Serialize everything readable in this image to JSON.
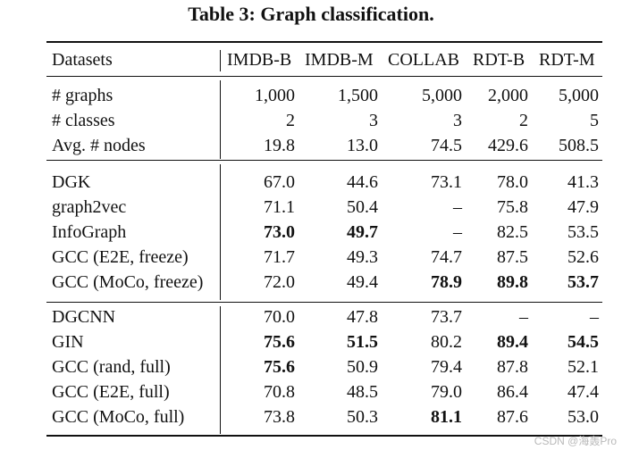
{
  "caption": "Table 3: Graph classification.",
  "columns": [
    "Datasets",
    "IMDB-B",
    "IMDB-M",
    "COLLAB",
    "RDT-B",
    "RDT-M"
  ],
  "stats_rows": [
    {
      "label": "# graphs",
      "values": [
        "1,000",
        "1,500",
        "5,000",
        "2,000",
        "5,000"
      ],
      "bold": [
        false,
        false,
        false,
        false,
        false
      ]
    },
    {
      "label": "# classes",
      "values": [
        "2",
        "3",
        "3",
        "2",
        "5"
      ],
      "bold": [
        false,
        false,
        false,
        false,
        false
      ]
    },
    {
      "label": "Avg. # nodes",
      "values": [
        "19.8",
        "13.0",
        "74.5",
        "429.6",
        "508.5"
      ],
      "bold": [
        false,
        false,
        false,
        false,
        false
      ]
    }
  ],
  "unsupervised_rows": [
    {
      "label": "DGK",
      "values": [
        "67.0",
        "44.6",
        "73.1",
        "78.0",
        "41.3"
      ],
      "bold": [
        false,
        false,
        false,
        false,
        false
      ]
    },
    {
      "label": "graph2vec",
      "values": [
        "71.1",
        "50.4",
        "–",
        "75.8",
        "47.9"
      ],
      "bold": [
        false,
        false,
        false,
        false,
        false
      ]
    },
    {
      "label": "InfoGraph",
      "values": [
        "73.0",
        "49.7",
        "–",
        "82.5",
        "53.5"
      ],
      "bold": [
        true,
        true,
        false,
        false,
        false
      ]
    },
    {
      "label": "GCC (E2E, freeze)",
      "values": [
        "71.7",
        "49.3",
        "74.7",
        "87.5",
        "52.6"
      ],
      "bold": [
        false,
        false,
        false,
        false,
        false
      ]
    },
    {
      "label": "GCC (MoCo, freeze)",
      "values": [
        "72.0",
        "49.4",
        "78.9",
        "89.8",
        "53.7"
      ],
      "bold": [
        false,
        false,
        true,
        true,
        true
      ]
    }
  ],
  "supervised_rows": [
    {
      "label": "DGCNN",
      "values": [
        "70.0",
        "47.8",
        "73.7",
        "–",
        "–"
      ],
      "bold": [
        false,
        false,
        false,
        false,
        false
      ]
    },
    {
      "label": "GIN",
      "values": [
        "75.6",
        "51.5",
        "80.2",
        "89.4",
        "54.5"
      ],
      "bold": [
        true,
        true,
        false,
        true,
        true
      ]
    },
    {
      "label": "GCC (rand, full)",
      "values": [
        "75.6",
        "50.9",
        "79.4",
        "87.8",
        "52.1"
      ],
      "bold": [
        true,
        false,
        false,
        false,
        false
      ]
    },
    {
      "label": "GCC (E2E, full)",
      "values": [
        "70.8",
        "48.5",
        "79.0",
        "86.4",
        "47.4"
      ],
      "bold": [
        false,
        false,
        false,
        false,
        false
      ]
    },
    {
      "label": "GCC (MoCo, full)",
      "values": [
        "73.8",
        "50.3",
        "81.1",
        "87.6",
        "53.0"
      ],
      "bold": [
        false,
        false,
        true,
        false,
        false
      ]
    }
  ],
  "watermark": "CSDN @海轰Pro"
}
